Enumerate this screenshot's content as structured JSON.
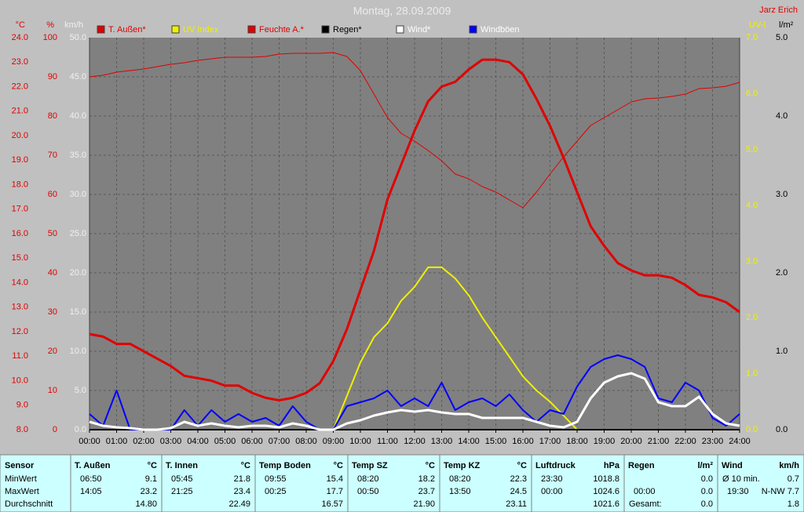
{
  "chart_data": {
    "type": "line",
    "title": "Montag, 28.09.2009",
    "author": "Jarz Erich",
    "x": [
      0,
      0.5,
      1,
      1.5,
      2,
      2.5,
      3,
      3.5,
      4,
      4.5,
      5,
      5.5,
      6,
      6.5,
      7,
      7.5,
      8,
      8.5,
      9,
      9.5,
      10,
      10.5,
      11,
      11.5,
      12,
      12.5,
      13,
      13.5,
      14,
      14.5,
      15,
      15.5,
      16,
      16.5,
      17,
      17.5,
      18,
      18.5,
      19,
      19.5,
      20,
      20.5,
      21,
      21.5,
      22,
      22.5,
      23,
      23.5,
      24
    ],
    "xlim": [
      0,
      24
    ],
    "xticks": [
      {
        "value": 0,
        "label": "00:00"
      },
      {
        "value": 1,
        "label": "01:00"
      },
      {
        "value": 2,
        "label": "02:00"
      },
      {
        "value": 3,
        "label": "03:00"
      },
      {
        "value": 4,
        "label": "04:00"
      },
      {
        "value": 5,
        "label": "05:00"
      },
      {
        "value": 6,
        "label": "06:00"
      },
      {
        "value": 7,
        "label": "07:00"
      },
      {
        "value": 8,
        "label": "08:00"
      },
      {
        "value": 9,
        "label": "09:00"
      },
      {
        "value": 10,
        "label": "10:00"
      },
      {
        "value": 11,
        "label": "11:00"
      },
      {
        "value": 12,
        "label": "12:00"
      },
      {
        "value": 13,
        "label": "13:00"
      },
      {
        "value": 14,
        "label": "14:00"
      },
      {
        "value": 15,
        "label": "15:00"
      },
      {
        "value": 16,
        "label": "16:00"
      },
      {
        "value": 17,
        "label": "17:00"
      },
      {
        "value": 18,
        "label": "18:00"
      },
      {
        "value": 19,
        "label": "19:00"
      },
      {
        "value": 20,
        "label": "20:00"
      },
      {
        "value": 21,
        "label": "21:00"
      },
      {
        "value": 22,
        "label": "22:00"
      },
      {
        "value": 23,
        "label": "23:00"
      },
      {
        "value": 24,
        "label": "24:00"
      }
    ],
    "grid": true,
    "axes": [
      {
        "label": "°C",
        "side": "left",
        "color": "#e00000",
        "lim": [
          8,
          24
        ],
        "ticks": [
          {
            "value": 8,
            "label": "8.0"
          },
          {
            "value": 9,
            "label": "9.0"
          },
          {
            "value": 10,
            "label": "10.0"
          },
          {
            "value": 11,
            "label": "11.0"
          },
          {
            "value": 12,
            "label": "12.0"
          },
          {
            "value": 13,
            "label": "13.0"
          },
          {
            "value": 14,
            "label": "14.0"
          },
          {
            "value": 15,
            "label": "15.0"
          },
          {
            "value": 16,
            "label": "16.0"
          },
          {
            "value": 17,
            "label": "17.0"
          },
          {
            "value": 18,
            "label": "18.0"
          },
          {
            "value": 19,
            "label": "19.0"
          },
          {
            "value": 20,
            "label": "20.0"
          },
          {
            "value": 21,
            "label": "21.0"
          },
          {
            "value": 22,
            "label": "22.0"
          },
          {
            "value": 23,
            "label": "23.0"
          },
          {
            "value": 24,
            "label": "24.0"
          }
        ]
      },
      {
        "label": "%",
        "side": "left",
        "color": "#e00000",
        "lim": [
          0,
          100
        ],
        "ticks": [
          0,
          10,
          20,
          30,
          40,
          50,
          60,
          70,
          80,
          90,
          100
        ]
      },
      {
        "label": "km/h",
        "side": "left",
        "color": "#f0f0f0",
        "lim": [
          0,
          50
        ],
        "ticks": [
          {
            "value": 0,
            "label": "0.0"
          },
          {
            "value": 5,
            "label": "5.0"
          },
          {
            "value": 10,
            "label": "10.0"
          },
          {
            "value": 15,
            "label": "15.0"
          },
          {
            "value": 20,
            "label": "20.0"
          },
          {
            "value": 25,
            "label": "25.0"
          },
          {
            "value": 30,
            "label": "30.0"
          },
          {
            "value": 35,
            "label": "35.0"
          },
          {
            "value": 40,
            "label": "40.0"
          },
          {
            "value": 45,
            "label": "45.0"
          },
          {
            "value": 50,
            "label": "50.0"
          }
        ]
      },
      {
        "label": "UV-I",
        "side": "right",
        "color": "#f0f000",
        "lim": [
          0,
          7
        ],
        "ticks": [
          {
            "value": 0,
            "label": "0.0"
          },
          {
            "value": 1,
            "label": "1.0"
          },
          {
            "value": 2,
            "label": "2.0"
          },
          {
            "value": 3,
            "label": "3.0"
          },
          {
            "value": 4,
            "label": "4.0"
          },
          {
            "value": 5,
            "label": "5.0"
          },
          {
            "value": 6,
            "label": "6.0"
          },
          {
            "value": 7,
            "label": "7.0"
          }
        ]
      },
      {
        "label": "l/m²",
        "side": "right",
        "color": "#000000",
        "lim": [
          0,
          5
        ],
        "ticks": [
          {
            "value": 0,
            "label": "0.0"
          },
          {
            "value": 1,
            "label": "1.0"
          },
          {
            "value": 2,
            "label": "2.0"
          },
          {
            "value": 3,
            "label": "3.0"
          },
          {
            "value": 4,
            "label": "4.0"
          },
          {
            "value": 5,
            "label": "5.0"
          }
        ]
      }
    ],
    "series": [
      {
        "name": "T. Außen*",
        "color": "#e00000",
        "label_color": "#e00000",
        "axis": 0,
        "values": [
          11.9,
          11.8,
          11.5,
          11.5,
          11.2,
          10.9,
          10.6,
          10.2,
          10.1,
          10.0,
          9.8,
          9.8,
          9.5,
          9.3,
          9.2,
          9.3,
          9.5,
          9.9,
          10.8,
          12.1,
          13.7,
          15.3,
          17.4,
          18.8,
          20.2,
          21.4,
          22.0,
          22.2,
          22.7,
          23.1,
          23.1,
          23.0,
          22.5,
          21.5,
          20.4,
          19.1,
          17.7,
          16.3,
          15.5,
          14.8,
          14.5,
          14.3,
          14.3,
          14.2,
          13.9,
          13.5,
          13.4,
          13.2,
          12.8
        ]
      },
      {
        "name": "UV Index",
        "color": "#f0f000",
        "label_color": "#f0f000",
        "axis": 3,
        "values": [
          0,
          0,
          0,
          0,
          0,
          0,
          0,
          0,
          0,
          0,
          0,
          0,
          0,
          0,
          0,
          0,
          0,
          0,
          0,
          0.6,
          1.2,
          1.65,
          1.9,
          2.3,
          2.55,
          2.9,
          2.9,
          2.7,
          2.4,
          2.0,
          1.65,
          1.3,
          0.95,
          0.7,
          0.5,
          0.25,
          0,
          0,
          0,
          0,
          0,
          0,
          0,
          0,
          0,
          0,
          0,
          0,
          0
        ]
      },
      {
        "name": "Feuchte A.*",
        "color": "#e00000",
        "label_color": "#e00000",
        "axis": 1,
        "values": [
          90,
          90.4,
          91.2,
          91.6,
          92,
          92.6,
          93.2,
          93.6,
          94.2,
          94.6,
          95,
          95,
          95,
          95.2,
          95.8,
          96,
          96,
          96,
          96.2,
          95.2,
          91.6,
          85.6,
          79.6,
          75.6,
          73.6,
          71.2,
          68.6,
          65.2,
          64,
          62,
          60.6,
          58.6,
          56.6,
          60.6,
          65.2,
          69.6,
          73.6,
          77.6,
          79.6,
          81.6,
          83.6,
          84.4,
          84.6,
          85,
          85.6,
          87,
          87.2,
          87.6,
          88.6
        ]
      },
      {
        "name": "Regen*",
        "color": "#000000",
        "label_color": "#000000",
        "axis": 4,
        "values": [
          0,
          0,
          0,
          0,
          0,
          0,
          0,
          0,
          0,
          0,
          0,
          0,
          0,
          0,
          0,
          0,
          0,
          0,
          0,
          0,
          0,
          0,
          0,
          0,
          0,
          0,
          0,
          0,
          0,
          0,
          0,
          0,
          0,
          0,
          0,
          0,
          0,
          0,
          0,
          0,
          0,
          0,
          0,
          0,
          0,
          0,
          0,
          0,
          0
        ]
      },
      {
        "name": "Wind*",
        "color": "#ffffff",
        "label_color": "#ffffff",
        "axis": 2,
        "values": [
          1.0,
          0.5,
          0.3,
          0.2,
          0,
          0,
          0.2,
          1.0,
          0.5,
          0.8,
          0.5,
          0.3,
          0.5,
          0.5,
          0.3,
          0.8,
          0.5,
          0,
          0,
          0.8,
          1.2,
          1.8,
          2.2,
          2.5,
          2.3,
          2.5,
          2.2,
          2.0,
          2.0,
          1.5,
          1.5,
          1.5,
          1.5,
          1.0,
          0.5,
          0.3,
          1.0,
          4.0,
          6.0,
          6.8,
          7.2,
          6.5,
          3.5,
          3.0,
          3.0,
          4.2,
          2.0,
          0.8,
          0.5
        ]
      },
      {
        "name": "Windböen",
        "color": "#0000ff",
        "label_color": "#ffffff",
        "axis": 2,
        "values": [
          2.0,
          0.5,
          5.0,
          0,
          0,
          0,
          0,
          2.5,
          0.5,
          2.5,
          1.0,
          2.0,
          1.0,
          1.5,
          0.5,
          3.0,
          1.0,
          0,
          0,
          3.0,
          3.5,
          4.0,
          5.0,
          3.0,
          4.0,
          3.0,
          6.0,
          2.5,
          3.5,
          4.0,
          3.0,
          4.5,
          2.5,
          1.0,
          2.5,
          2.0,
          5.5,
          8.0,
          9.0,
          9.5,
          9.0,
          8.0,
          4.0,
          3.5,
          6.0,
          5.0,
          1.5,
          0.5,
          2.0
        ]
      }
    ]
  },
  "table": {
    "row_labels": [
      "Sensor",
      "MinWert",
      "MaxWert",
      "Durchschnitt"
    ],
    "sensors": [
      {
        "name": "T. Außen",
        "unit": "°C",
        "rows": [
          [
            "06:50",
            "9.1"
          ],
          [
            "14:05",
            "23.2"
          ],
          [
            null,
            "14.80"
          ]
        ]
      },
      {
        "name": "T. Innen",
        "unit": "°C",
        "rows": [
          [
            "05:45",
            "21.8"
          ],
          [
            "21:25",
            "23.4"
          ],
          [
            null,
            "22.49"
          ]
        ]
      },
      {
        "name": "Temp Boden",
        "unit": "°C",
        "rows": [
          [
            "09:55",
            "15.4"
          ],
          [
            "00:25",
            "17.7"
          ],
          [
            null,
            "16.57"
          ]
        ]
      },
      {
        "name": "Temp SZ",
        "unit": "°C",
        "rows": [
          [
            "08:20",
            "18.2"
          ],
          [
            "00:50",
            "23.7"
          ],
          [
            null,
            "21.90"
          ]
        ]
      },
      {
        "name": "Temp KZ",
        "unit": "°C",
        "rows": [
          [
            "08:20",
            "22.3"
          ],
          [
            "13:50",
            "24.5"
          ],
          [
            null,
            "23.11"
          ]
        ]
      },
      {
        "name": "Luftdruck",
        "unit": "hPa",
        "rows": [
          [
            "23:30",
            "1018.8"
          ],
          [
            "00:00",
            "1024.6"
          ],
          [
            null,
            "1021.6"
          ]
        ]
      },
      {
        "name": "Regen",
        "unit": "l/m²",
        "rows": [
          [
            null,
            "0.0"
          ],
          [
            "00:00",
            "0.0"
          ],
          [
            "Gesamt:",
            "0.0"
          ]
        ]
      },
      {
        "name": "Wind",
        "unit": "km/h",
        "rows": [
          [
            "Ø 10 min.",
            "0.7"
          ],
          [
            "19:30",
            "N-NW 7.7"
          ],
          [
            null,
            "1.8"
          ]
        ]
      }
    ]
  }
}
